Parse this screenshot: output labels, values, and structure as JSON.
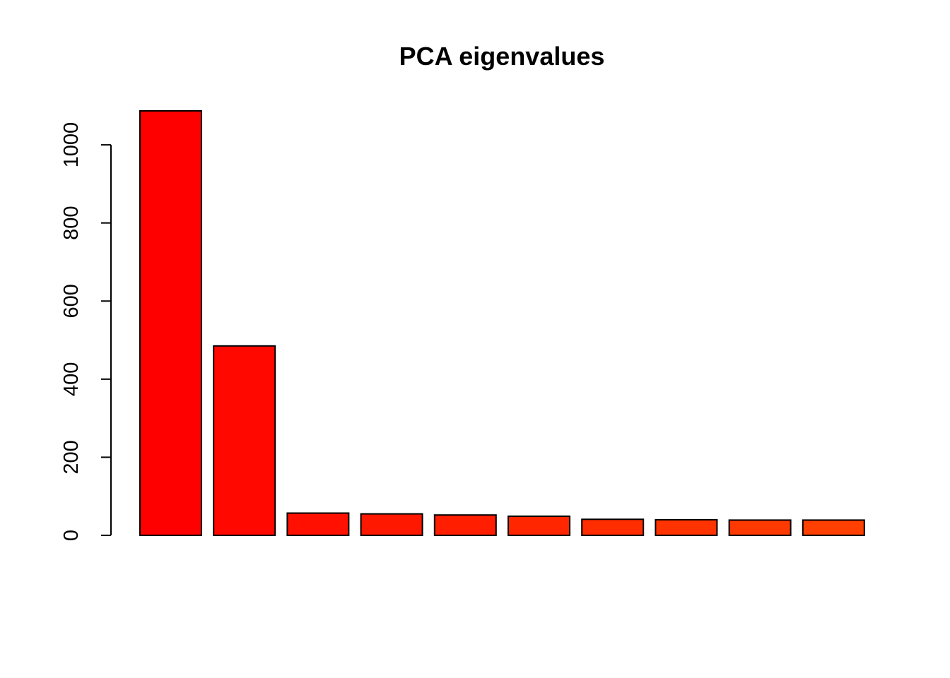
{
  "chart_data": {
    "type": "bar",
    "title": "PCA eigenvalues",
    "xlabel": "",
    "ylabel": "",
    "categories": [
      "",
      "",
      "",
      "",
      "",
      "",
      "",
      "",
      "",
      ""
    ],
    "values": [
      1087,
      485,
      57,
      55,
      52,
      49,
      41,
      40,
      39,
      39
    ],
    "colors": [
      "#ff0000",
      "#ff0800",
      "#ff1000",
      "#ff1800",
      "#ff1f00",
      "#ff2600",
      "#ff2d00",
      "#ff3300",
      "#ff3a00",
      "#ff4000"
    ],
    "yticks": [
      0,
      200,
      400,
      600,
      800,
      1000
    ],
    "ytick_labels": [
      "0",
      "200",
      "400",
      "600",
      "800",
      "1000"
    ],
    "ylim": [
      0,
      1087
    ],
    "grid": false,
    "legend": "none"
  }
}
